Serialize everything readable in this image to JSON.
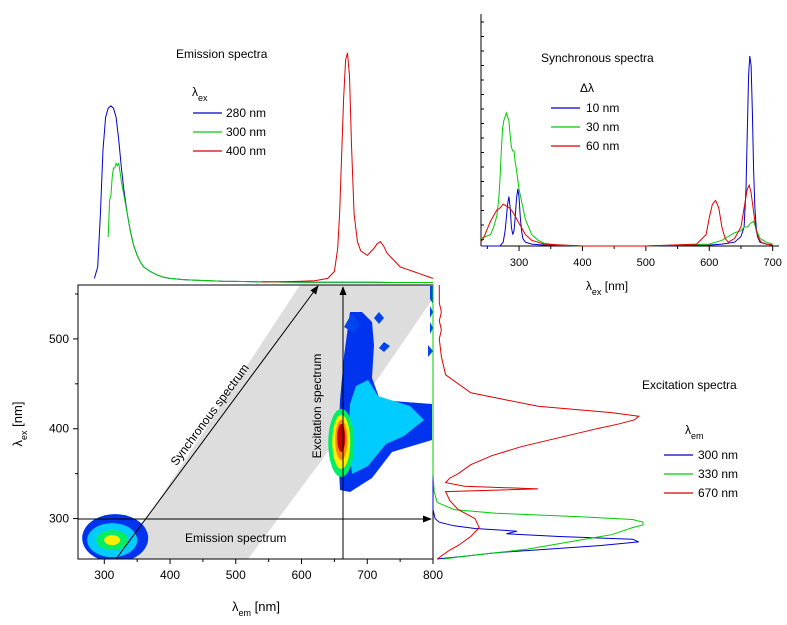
{
  "chart_data": [
    {
      "id": "emission",
      "type": "line",
      "title": "Emission spectra",
      "legend_title": "λex",
      "legend_position": "top-center",
      "xlim": [
        260,
        800
      ],
      "series": [
        {
          "name": "280 nm",
          "color": "#0000cc",
          "x": [
            285,
            290,
            294,
            298,
            302,
            306,
            310,
            314,
            318,
            322,
            326,
            330,
            335,
            340,
            345,
            350,
            355,
            360,
            370,
            380,
            390,
            400,
            420,
            440,
            460,
            480,
            500,
            540,
            580,
            620,
            660,
            700,
            740,
            780,
            800
          ],
          "y": [
            0.02,
            0.07,
            0.3,
            0.58,
            0.72,
            0.76,
            0.77,
            0.76,
            0.72,
            0.62,
            0.5,
            0.4,
            0.3,
            0.22,
            0.16,
            0.12,
            0.09,
            0.07,
            0.05,
            0.035,
            0.025,
            0.02,
            0.015,
            0.012,
            0.01,
            0.008,
            0.007,
            0.005,
            0.004,
            0.003,
            0.003,
            0.003,
            0.002,
            0.002,
            0.002
          ]
        },
        {
          "name": "300 nm",
          "color": "#00cc00",
          "x": [
            306,
            308,
            310,
            312,
            314,
            316,
            318,
            320,
            322,
            324,
            326,
            330,
            335,
            340,
            345,
            350,
            355,
            360,
            370,
            380,
            390,
            400,
            420,
            440,
            460,
            480,
            500,
            540,
            580,
            620,
            660,
            700,
            740,
            780,
            800
          ],
          "y": [
            0.2,
            0.36,
            0.38,
            0.46,
            0.5,
            0.5,
            0.52,
            0.51,
            0.52,
            0.48,
            0.44,
            0.38,
            0.3,
            0.22,
            0.16,
            0.12,
            0.09,
            0.07,
            0.05,
            0.035,
            0.025,
            0.02,
            0.015,
            0.012,
            0.01,
            0.008,
            0.007,
            0.005,
            0.004,
            0.003,
            0.003,
            0.003,
            0.002,
            0.002,
            0.002
          ]
        },
        {
          "name": "400 nm",
          "color": "#dd0000",
          "x": [
            540,
            580,
            600,
            620,
            640,
            650,
            655,
            658,
            661,
            664,
            667,
            670,
            673,
            676,
            680,
            685,
            690,
            700,
            710,
            715,
            720,
            725,
            730,
            740,
            750,
            760,
            770,
            780,
            790,
            800
          ],
          "y": [
            0.005,
            0.006,
            0.008,
            0.01,
            0.02,
            0.05,
            0.15,
            0.3,
            0.55,
            0.8,
            0.97,
            1.0,
            0.9,
            0.6,
            0.3,
            0.18,
            0.14,
            0.12,
            0.15,
            0.17,
            0.18,
            0.16,
            0.13,
            0.1,
            0.07,
            0.06,
            0.05,
            0.04,
            0.03,
            0.02
          ]
        }
      ]
    },
    {
      "id": "synchronous",
      "type": "line",
      "title": "Synchronous  spectra",
      "legend_title": "Δλ",
      "legend_position": "top-center",
      "xlabel": "λex [nm]",
      "xlim": [
        240,
        710
      ],
      "xticks": [
        300,
        400,
        500,
        600,
        700
      ],
      "series": [
        {
          "name": "10 nm",
          "color": "#0000cc",
          "x": [
            240,
            260,
            270,
            275,
            278,
            280,
            282,
            284,
            286,
            288,
            290,
            292,
            294,
            296,
            298,
            300,
            302,
            304,
            306,
            310,
            320,
            340,
            400,
            500,
            600,
            620,
            640,
            650,
            655,
            658,
            660,
            662,
            664,
            666,
            668,
            670,
            672,
            674,
            676,
            680,
            690,
            700
          ],
          "y": [
            0,
            0,
            0,
            0.02,
            0.08,
            0.15,
            0.22,
            0.26,
            0.2,
            0.1,
            0.06,
            0.08,
            0.15,
            0.25,
            0.3,
            0.26,
            0.15,
            0.08,
            0.04,
            0.02,
            0.01,
            0.005,
            0,
            0,
            0.005,
            0.01,
            0.02,
            0.05,
            0.1,
            0.3,
            0.6,
            0.9,
            1.0,
            0.95,
            0.7,
            0.4,
            0.2,
            0.1,
            0.05,
            0.02,
            0.01,
            0.005
          ]
        },
        {
          "name": "30 nm",
          "color": "#00cc00",
          "x": [
            240,
            255,
            260,
            265,
            268,
            270,
            272,
            274,
            276,
            278,
            280,
            282,
            284,
            286,
            288,
            290,
            292,
            294,
            296,
            300,
            305,
            310,
            320,
            330,
            340,
            360,
            400,
            500,
            600,
            620,
            630,
            640,
            650,
            655,
            660,
            665,
            670,
            675,
            680,
            690,
            700
          ],
          "y": [
            0.04,
            0.06,
            0.1,
            0.16,
            0.25,
            0.35,
            0.5,
            0.62,
            0.66,
            0.68,
            0.7,
            0.68,
            0.66,
            0.58,
            0.52,
            0.5,
            0.5,
            0.44,
            0.4,
            0.3,
            0.22,
            0.14,
            0.06,
            0.03,
            0.015,
            0.005,
            0,
            0,
            0.01,
            0.03,
            0.05,
            0.07,
            0.08,
            0.1,
            0.1,
            0.12,
            0.13,
            0.08,
            0.04,
            0.02,
            0.01
          ]
        },
        {
          "name": "60 nm",
          "color": "#dd0000",
          "x": [
            240,
            245,
            250,
            255,
            260,
            265,
            270,
            275,
            280,
            285,
            290,
            295,
            300,
            310,
            320,
            340,
            400,
            500,
            580,
            595,
            600,
            605,
            610,
            615,
            620,
            625,
            630,
            640,
            650,
            655,
            660,
            663,
            666,
            670,
            674,
            678,
            682,
            690,
            700
          ],
          "y": [
            0.02,
            0.05,
            0.09,
            0.13,
            0.16,
            0.19,
            0.2,
            0.22,
            0.21,
            0.2,
            0.18,
            0.15,
            0.12,
            0.06,
            0.03,
            0.01,
            0,
            0,
            0.01,
            0.06,
            0.15,
            0.22,
            0.24,
            0.2,
            0.1,
            0.04,
            0.02,
            0.04,
            0.1,
            0.2,
            0.3,
            0.32,
            0.28,
            0.18,
            0.08,
            0.04,
            0.02,
            0.01,
            0.005
          ]
        }
      ]
    },
    {
      "id": "eem",
      "type": "heatmap",
      "xlabel": "λem [nm]",
      "ylabel": "λex [nm]",
      "xlim": [
        260,
        800
      ],
      "ylim": [
        255,
        560
      ],
      "xticks": [
        300,
        400,
        500,
        600,
        700,
        800
      ],
      "yticks": [
        300,
        400,
        500
      ],
      "grey_band_color": "#dddddd",
      "colorscale": [
        "#0033ee",
        "#00ccff",
        "#00ee66",
        "#ffee00",
        "#ff8800",
        "#cc0000"
      ],
      "peaks": [
        {
          "em": 312,
          "ex": 276,
          "level": 3
        },
        {
          "em": 665,
          "ex": 392,
          "level": 5
        }
      ],
      "annotations": [
        {
          "text": "Synchronous spectrum",
          "from": [
            300,
            255
          ],
          "to": [
            655,
            555
          ]
        },
        {
          "text": "Excitation spectrum",
          "from": [
            660,
            255
          ],
          "to": [
            660,
            555
          ]
        },
        {
          "text": "Emission spectrum",
          "from": [
            260,
            300
          ],
          "to": [
            800,
            300
          ]
        }
      ]
    },
    {
      "id": "excitation",
      "type": "line",
      "orientation": "vertical",
      "title": "Excitation spectra",
      "legend_title": "λem",
      "legend_position": "right",
      "ylim": [
        255,
        560
      ],
      "series": [
        {
          "name": "300 nm",
          "color": "#0000cc",
          "x": [
            255,
            258,
            262,
            266,
            270,
            274,
            277,
            280,
            283,
            286,
            289,
            292,
            296,
            300,
            310,
            320,
            340,
            360,
            400,
            460,
            520,
            560
          ],
          "y": [
            0.02,
            0.15,
            0.3,
            0.55,
            0.8,
            0.98,
            0.95,
            0.6,
            0.35,
            0.4,
            0.2,
            0.1,
            0.03,
            0.01,
            0,
            0,
            0,
            0,
            0,
            0,
            0,
            0
          ]
        },
        {
          "name": "330 nm",
          "color": "#00cc00",
          "x": [
            255,
            258,
            262,
            266,
            270,
            274,
            278,
            282,
            286,
            290,
            293,
            296,
            299,
            302,
            306,
            310,
            318,
            330,
            350,
            380,
            420,
            480,
            540,
            560
          ],
          "y": [
            0.05,
            0.15,
            0.3,
            0.45,
            0.55,
            0.65,
            0.75,
            0.85,
            0.9,
            0.95,
            1.0,
            1.0,
            0.95,
            0.7,
            0.3,
            0.1,
            0.02,
            0.005,
            0,
            0,
            0,
            0,
            0,
            0
          ]
        },
        {
          "name": "670 nm",
          "color": "#dd0000",
          "x": [
            255,
            260,
            265,
            270,
            280,
            290,
            300,
            310,
            320,
            330,
            333,
            336,
            340,
            345,
            350,
            360,
            370,
            380,
            390,
            400,
            405,
            410,
            414,
            418,
            425,
            440,
            460,
            480,
            500,
            510,
            520,
            530,
            540,
            550,
            560
          ],
          "y": [
            0.02,
            0.05,
            0.08,
            0.12,
            0.18,
            0.22,
            0.2,
            0.12,
            0.08,
            0.06,
            0.5,
            0.15,
            0.06,
            0.08,
            0.12,
            0.18,
            0.28,
            0.42,
            0.6,
            0.78,
            0.88,
            0.96,
            0.98,
            0.85,
            0.5,
            0.18,
            0.06,
            0.04,
            0.03,
            0.04,
            0.03,
            0.04,
            0.03,
            0.03,
            0.03
          ]
        }
      ]
    }
  ]
}
